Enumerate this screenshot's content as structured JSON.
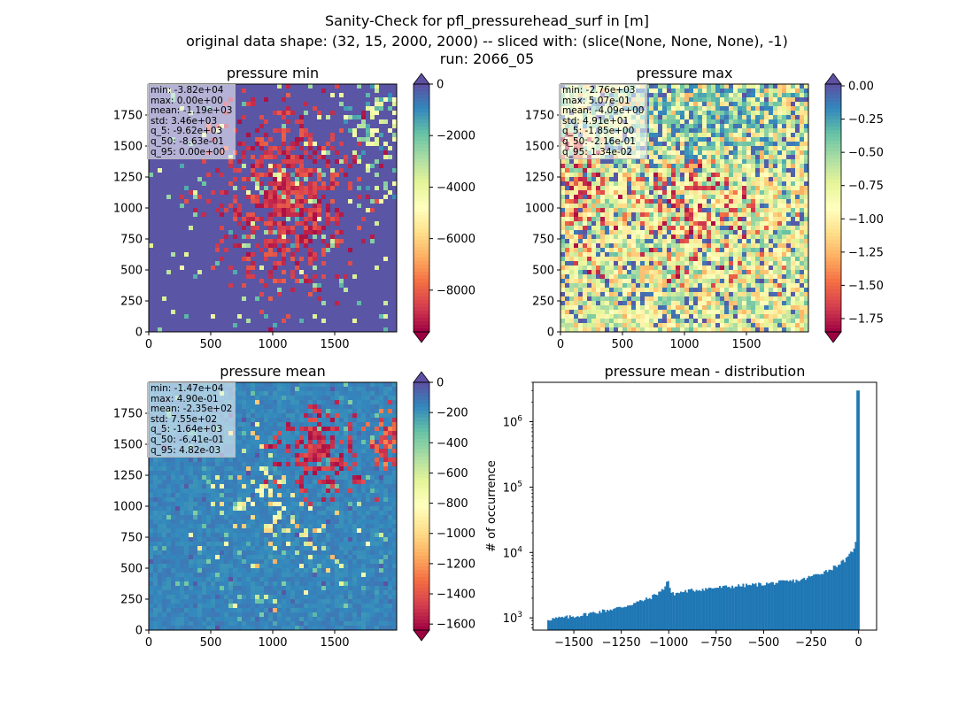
{
  "figure": {
    "title_lines": [
      "Sanity-Check for pfl_pressurehead_surf in [m]",
      "original data shape: (32, 15, 2000, 2000) -- sliced with: (slice(None, None, None), -1)",
      "run: 2066_05"
    ]
  },
  "colormap": {
    "name": "Spectral",
    "stops": [
      "#9e0142",
      "#d53e4f",
      "#f46d43",
      "#fdae61",
      "#fee08b",
      "#ffffbf",
      "#e6f598",
      "#abdda4",
      "#66c2a5",
      "#3288bd",
      "#5e4fa2"
    ]
  },
  "chart_data": [
    {
      "type": "heatmap",
      "title": "pressure min",
      "xlim": [
        0,
        2000
      ],
      "ylim": [
        0,
        2000
      ],
      "xticks": [
        0,
        500,
        1000,
        1500
      ],
      "yticks": [
        0,
        250,
        500,
        750,
        1000,
        1250,
        1500,
        1750
      ],
      "colorbar": {
        "vmin": -9620,
        "vmax": 0,
        "ticks": [
          0,
          -2000,
          -4000,
          -6000,
          -8000
        ],
        "tick_labels": [
          "0",
          "−2000",
          "−4000",
          "−6000",
          "−8000"
        ],
        "extend": "both"
      },
      "stats": [
        "min: -3.82e+04",
        "max: 0.00e+00",
        "mean: -1.19e+03",
        "std: 3.46e+03",
        "q_5: -9.62e+03",
        "q_50: -8.63e-01",
        "q_95: 0.00e+00"
      ]
    },
    {
      "type": "heatmap",
      "title": "pressure max",
      "xlim": [
        0,
        2000
      ],
      "ylim": [
        0,
        2000
      ],
      "xticks": [
        0,
        500,
        1000,
        1500
      ],
      "yticks": [
        0,
        250,
        500,
        750,
        1000,
        1250,
        1500,
        1750
      ],
      "colorbar": {
        "vmin": -1.85,
        "vmax": 0.0134,
        "ticks": [
          0.0,
          -0.25,
          -0.5,
          -0.75,
          -1.0,
          -1.25,
          -1.5,
          -1.75
        ],
        "tick_labels": [
          "0.00",
          "−0.25",
          "−0.50",
          "−0.75",
          "−1.00",
          "−1.25",
          "−1.50",
          "−1.75"
        ],
        "extend": "both"
      },
      "stats": [
        "min: -2.76e+03",
        "max: 5.07e-01",
        "mean: -4.09e+00",
        "std: 4.91e+01",
        "q_5: -1.85e+00",
        "q_50: -2.16e-01",
        "q_95: 1.34e-02"
      ]
    },
    {
      "type": "heatmap",
      "title": "pressure mean",
      "xlim": [
        0,
        2000
      ],
      "ylim": [
        0,
        2000
      ],
      "xticks": [
        0,
        500,
        1000,
        1500
      ],
      "yticks": [
        0,
        250,
        500,
        750,
        1000,
        1250,
        1500,
        1750
      ],
      "colorbar": {
        "vmin": -1640,
        "vmax": 0,
        "ticks": [
          0,
          -200,
          -400,
          -600,
          -800,
          -1000,
          -1200,
          -1400,
          -1600
        ],
        "tick_labels": [
          "0",
          "−200",
          "−400",
          "−600",
          "−800",
          "−1000",
          "−1200",
          "−1400",
          "−1600"
        ],
        "extend": "both"
      },
      "stats": [
        "min: -1.47e+04",
        "max: 4.90e-01",
        "mean: -2.35e+02",
        "std: 7.55e+02",
        "q_5: -1.64e+03",
        "q_50: -6.41e-01",
        "q_95: 4.82e-03"
      ]
    },
    {
      "type": "bar",
      "title": "pressure mean - distribution",
      "ylabel": "# of occurrence",
      "yscale": "log",
      "xlim": [
        -1715,
        95
      ],
      "ylim": [
        650,
        4000000
      ],
      "xticks": [
        -1500,
        -1250,
        -1000,
        -750,
        -500,
        -250,
        0
      ],
      "xtick_labels": [
        "−1500",
        "−1250",
        "−1000",
        "−750",
        "−500",
        "−250",
        "0"
      ],
      "yticks": [
        1000,
        10000,
        100000,
        1000000
      ],
      "ytick_labels": [
        [
          "10",
          "3"
        ],
        [
          "10",
          "4"
        ],
        [
          "10",
          "5"
        ],
        [
          "10",
          "6"
        ]
      ],
      "bar_color": "#1f77b4",
      "bin_range": [
        -1640,
        5
      ],
      "bins": 200,
      "anchors": [
        [
          -1640,
          950
        ],
        [
          -1500,
          1050
        ],
        [
          -1250,
          1450
        ],
        [
          -1100,
          2000
        ],
        [
          -1030,
          2700
        ],
        [
          -1005,
          3900
        ],
        [
          -985,
          2300
        ],
        [
          -900,
          2600
        ],
        [
          -750,
          2900
        ],
        [
          -500,
          3300
        ],
        [
          -300,
          3800
        ],
        [
          -150,
          5500
        ],
        [
          -60,
          8000
        ],
        [
          -30,
          11000
        ],
        [
          -15,
          14000
        ]
      ],
      "spike": {
        "x": 0,
        "value": 3000000
      }
    }
  ]
}
